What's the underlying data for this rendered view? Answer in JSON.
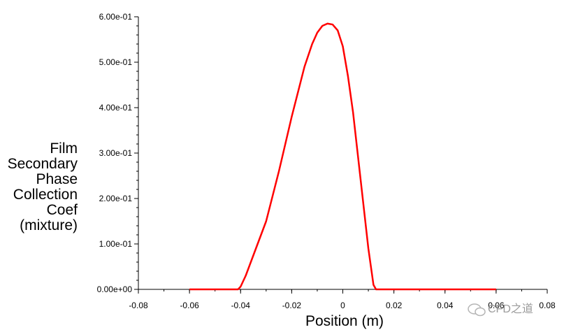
{
  "chart_data": {
    "type": "line",
    "title": "",
    "xlabel": "Position (m)",
    "ylabel_lines": [
      "Film",
      "Secondary",
      "Phase",
      "Collection",
      "Coef",
      "(mixture)"
    ],
    "xlim": [
      -0.08,
      0.08
    ],
    "ylim": [
      0,
      0.6
    ],
    "x_ticks": [
      "-0.08",
      "-0.06",
      "-0.04",
      "-0.02",
      "0",
      "0.02",
      "0.04",
      "0.06",
      "0.08"
    ],
    "x_tick_values": [
      -0.08,
      -0.06,
      -0.04,
      -0.02,
      0,
      0.02,
      0.04,
      0.06,
      0.08
    ],
    "y_ticks": [
      "0.00e+00",
      "1.00e-01",
      "2.00e-01",
      "3.00e-01",
      "4.00e-01",
      "5.00e-01",
      "6.00e-01"
    ],
    "y_tick_values": [
      0,
      0.1,
      0.2,
      0.3,
      0.4,
      0.5,
      0.6
    ],
    "grid": false,
    "legend": "none",
    "series": [
      {
        "color": "#ff0000",
        "x": [
          -0.06,
          -0.041,
          -0.04,
          -0.038,
          -0.035,
          -0.03,
          -0.025,
          -0.02,
          -0.015,
          -0.012,
          -0.01,
          -0.008,
          -0.006,
          -0.004,
          -0.002,
          0.0,
          0.002,
          0.004,
          0.006,
          0.008,
          0.01,
          0.011,
          0.012,
          0.013,
          0.015,
          0.03,
          0.06
        ],
        "y": [
          0.0,
          0.0,
          0.006,
          0.03,
          0.075,
          0.15,
          0.26,
          0.38,
          0.49,
          0.54,
          0.565,
          0.58,
          0.585,
          0.583,
          0.57,
          0.535,
          0.47,
          0.39,
          0.29,
          0.19,
          0.09,
          0.05,
          0.01,
          0.0,
          0.0,
          0.0,
          0.0
        ]
      }
    ]
  },
  "watermark": {
    "text": "CFD之道",
    "icon": "wechat-logo"
  }
}
